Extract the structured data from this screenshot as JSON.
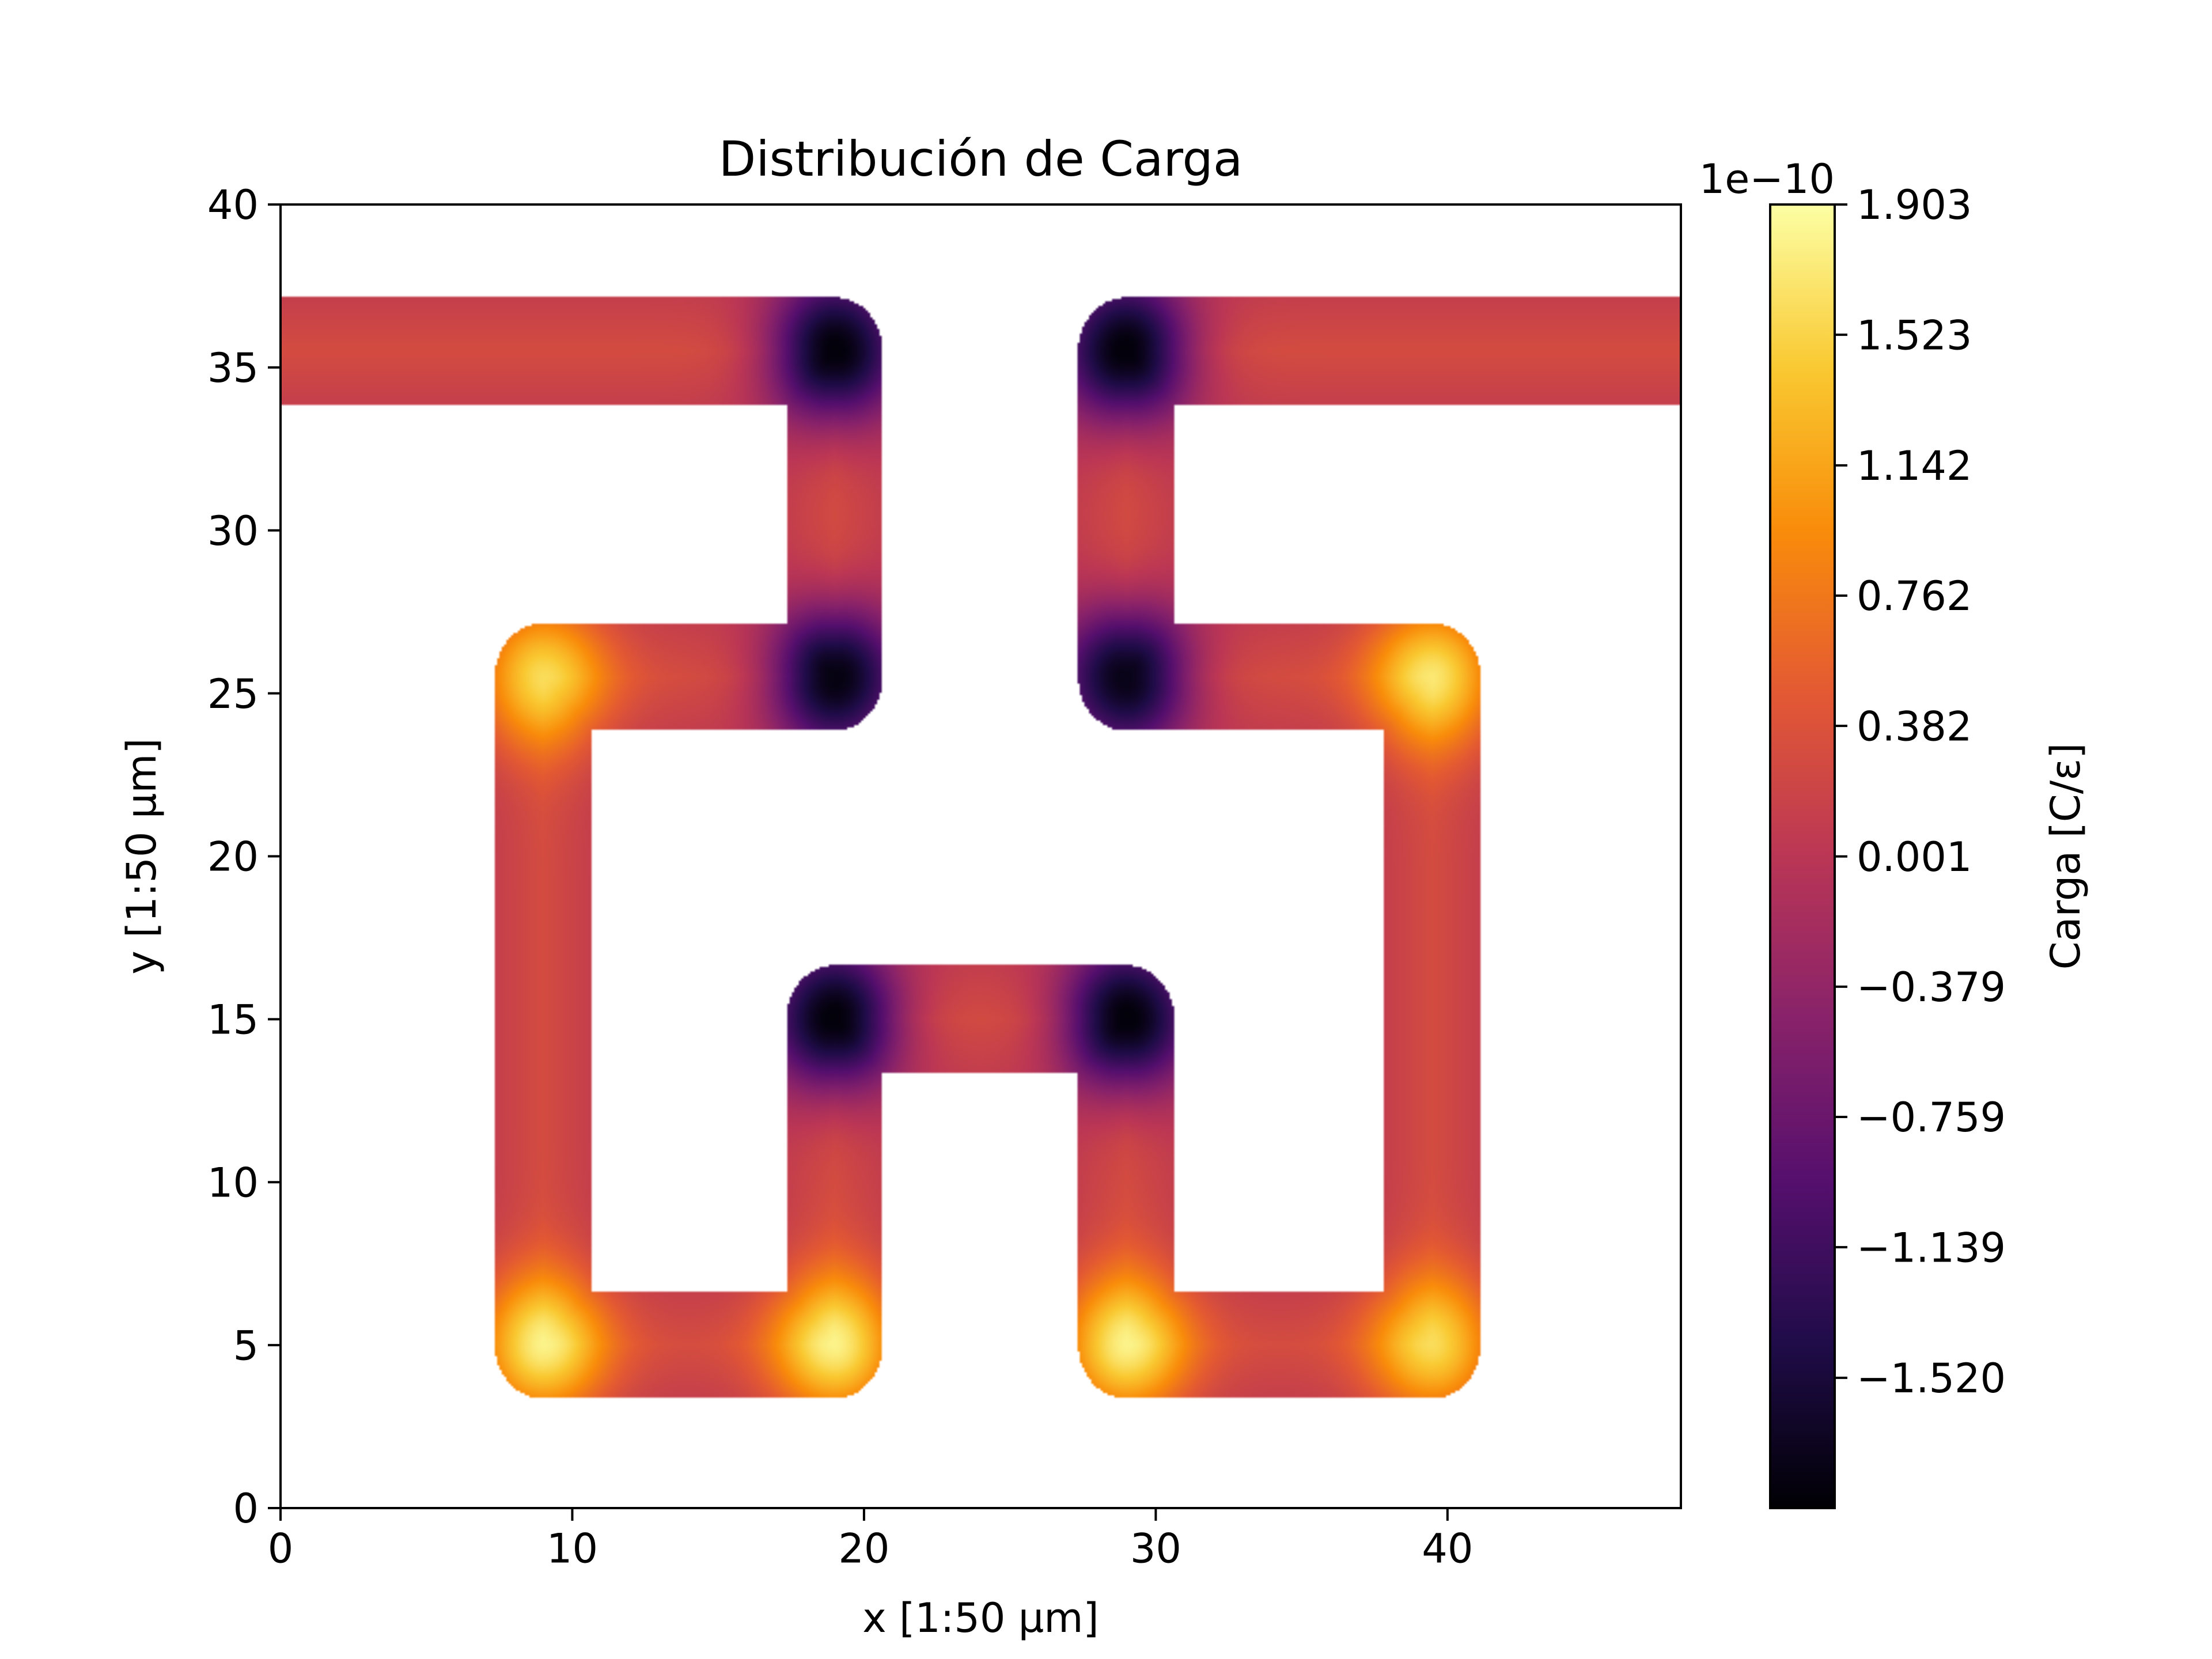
{
  "chart_data": {
    "type": "heatmap",
    "subtype": "filled-contour",
    "title": "Distribución de Carga",
    "xlabel": "x [1:50 µm]",
    "ylabel": "y [1:50 µm]",
    "xlim": [
      0,
      48
    ],
    "ylim": [
      0,
      40
    ],
    "xticks": [
      0,
      10,
      20,
      30,
      40
    ],
    "yticks": [
      0,
      5,
      10,
      15,
      20,
      25,
      30,
      35,
      40
    ],
    "colormap": "inferno",
    "colorbar": {
      "label": "Carga [C/ε]",
      "offset_text": "1e−10",
      "min": -1.9,
      "max": 1.903,
      "ticks": [
        1.903,
        1.523,
        1.142,
        0.762,
        0.382,
        0.001,
        -0.379,
        -0.759,
        -1.139,
        -1.52
      ],
      "tick_labels": [
        "1.903",
        "1.523",
        "1.142",
        "0.762",
        "0.382",
        "0.001",
        "−0.379",
        "−0.759",
        "−1.139",
        "−1.520"
      ]
    },
    "baseline_value": 0.3,
    "conductor_paths": [
      [
        [
          0,
          35.5
        ],
        [
          19,
          35.5
        ],
        [
          19,
          25.5
        ],
        [
          9,
          25.5
        ],
        [
          9,
          5
        ],
        [
          19,
          5
        ],
        [
          19,
          15
        ],
        [
          29,
          15
        ],
        [
          29,
          5
        ],
        [
          39.5,
          5
        ],
        [
          39.5,
          25.5
        ],
        [
          29,
          25.5
        ],
        [
          29,
          35.5
        ],
        [
          48,
          35.5
        ]
      ]
    ],
    "charge_points": [
      {
        "x": 19,
        "y": 35.5,
        "value": -1.85
      },
      {
        "x": 29,
        "y": 35.5,
        "value": -1.85
      },
      {
        "x": 19,
        "y": 25.5,
        "value": -1.8
      },
      {
        "x": 29,
        "y": 25.5,
        "value": -1.75
      },
      {
        "x": 19,
        "y": 15,
        "value": -1.85
      },
      {
        "x": 29,
        "y": 15,
        "value": -1.85
      },
      {
        "x": 9,
        "y": 25.5,
        "value": 1.6
      },
      {
        "x": 39.5,
        "y": 25.5,
        "value": 1.7
      },
      {
        "x": 9,
        "y": 5,
        "value": 1.8
      },
      {
        "x": 19,
        "y": 5,
        "value": 1.8
      },
      {
        "x": 29,
        "y": 5,
        "value": 1.8
      },
      {
        "x": 39.5,
        "y": 5,
        "value": 1.6
      }
    ]
  }
}
